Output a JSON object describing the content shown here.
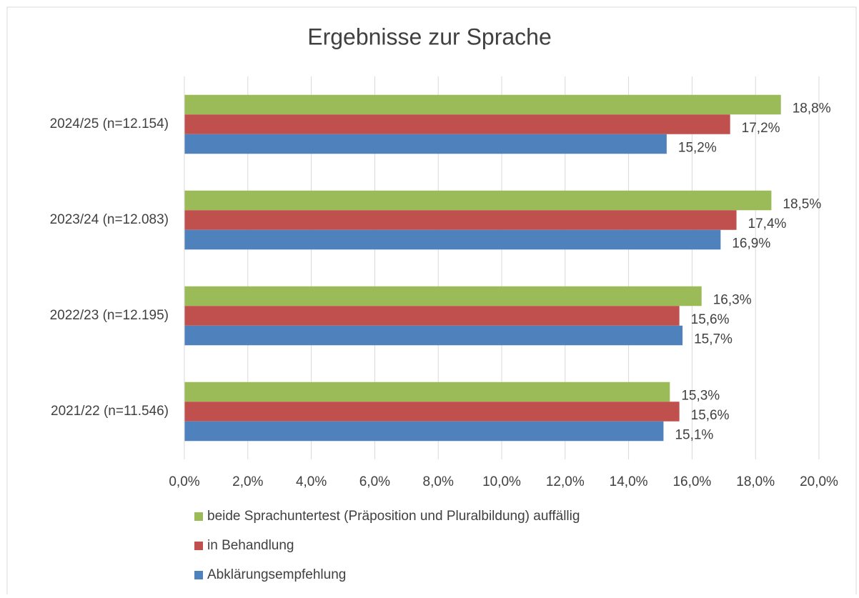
{
  "chart_data": {
    "type": "bar",
    "orientation": "horizontal",
    "title": "Ergebnisse zur Sprache",
    "categories": [
      "2024/25 (n=12.154)",
      "2023/24 (n=12.083)",
      "2022/23 (n=12.195)",
      "2021/22 (n=11.546)"
    ],
    "series": [
      {
        "name": "beide Sprachuntertest (Präposition und Pluralbildung) auffällig",
        "color": "#9bbb59",
        "values": [
          18.8,
          18.5,
          16.3,
          15.3
        ],
        "value_labels": [
          "18,8%",
          "18,5%",
          "16,3%",
          "15,3%"
        ]
      },
      {
        "name": "in Behandlung",
        "color": "#c0504d",
        "values": [
          17.2,
          17.4,
          15.6,
          15.6
        ],
        "value_labels": [
          "17,2%",
          "17,4%",
          "15,6%",
          "15,6%"
        ]
      },
      {
        "name": "Abklärungsempfehlung",
        "color": "#4f81bd",
        "values": [
          15.2,
          16.9,
          15.7,
          15.1
        ],
        "value_labels": [
          "15,2%",
          "16,9%",
          "15,7%",
          "15,1%"
        ]
      }
    ],
    "xlim": [
      0,
      20
    ],
    "xticks": [
      {
        "value": 0,
        "label": "0,0%"
      },
      {
        "value": 2,
        "label": "2,0%"
      },
      {
        "value": 4,
        "label": "4,0%"
      },
      {
        "value": 6,
        "label": "6,0%"
      },
      {
        "value": 8,
        "label": "8,0%"
      },
      {
        "value": 10,
        "label": "10,0%"
      },
      {
        "value": 12,
        "label": "12,0%"
      },
      {
        "value": 14,
        "label": "14,0%"
      },
      {
        "value": 16,
        "label": "16,0%"
      },
      {
        "value": 18,
        "label": "18,0%"
      },
      {
        "value": 20,
        "label": "20,0%"
      }
    ],
    "grid": true,
    "legend": "bottom"
  }
}
